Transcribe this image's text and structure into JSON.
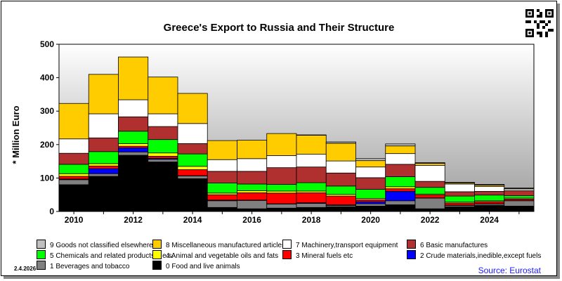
{
  "chart_data": {
    "type": "bar",
    "stacked": true,
    "title": "Greece's Export to Russia and Their Structure",
    "ylabel": "* Million Euro",
    "ylim": [
      0,
      500
    ],
    "yticks": [
      "0",
      "100",
      "200",
      "300",
      "400",
      "500"
    ],
    "categories": [
      "2010",
      "2011",
      "2012",
      "2013",
      "2014",
      "2015",
      "2016",
      "2017",
      "2018",
      "2019",
      "2020",
      "2021",
      "2022",
      "2023",
      "2024",
      "2025"
    ],
    "xtick_labels": [
      "2010",
      "2012",
      "2014",
      "2016",
      "2018",
      "2020",
      "2022",
      "2024"
    ],
    "series": [
      {
        "name": "0 Food and live animals",
        "color": "#000000",
        "values": [
          80,
          105,
          168,
          148,
          98,
          12,
          8,
          10,
          12,
          14,
          16,
          20,
          8,
          14,
          18,
          16
        ]
      },
      {
        "name": "1 Beverages and tobacco",
        "color": "#808080",
        "values": [
          15,
          8,
          10,
          8,
          8,
          20,
          25,
          12,
          12,
          4,
          7,
          12,
          32,
          4,
          4,
          16
        ]
      },
      {
        "name": "2 Crude materials,inedible,except fuels",
        "color": "#0000ff",
        "values": [
          2,
          15,
          12,
          3,
          1,
          2,
          1,
          1,
          2,
          2,
          6,
          28,
          1,
          1,
          1,
          1
        ]
      },
      {
        "name": "3 Mineral fuels etc",
        "color": "#ff0000",
        "values": [
          8,
          8,
          5,
          6,
          18,
          16,
          22,
          32,
          30,
          26,
          6,
          8,
          8,
          6,
          6,
          4
        ]
      },
      {
        "name": "4 Animal and vegetable oils and fats",
        "color": "#ffff00",
        "values": [
          8,
          7,
          8,
          10,
          10,
          5,
          6,
          6,
          5,
          5,
          4,
          6,
          3,
          3,
          3,
          3
        ]
      },
      {
        "name": "5 Chemicals and related products,n.e.s.",
        "color": "#00ff00",
        "values": [
          28,
          36,
          37,
          40,
          37,
          30,
          20,
          20,
          25,
          25,
          27,
          30,
          20,
          18,
          17,
          7
        ]
      },
      {
        "name": "6 Basic manufactures",
        "color": "#b03030",
        "values": [
          33,
          41,
          43,
          39,
          31,
          35,
          38,
          50,
          47,
          39,
          35,
          37,
          18,
          13,
          11,
          15
        ]
      },
      {
        "name": "7 Machinery,transport equipment",
        "color": "#ffffff",
        "values": [
          43,
          72,
          51,
          38,
          60,
          35,
          38,
          36,
          38,
          36,
          32,
          32,
          48,
          23,
          15,
          5
        ]
      },
      {
        "name": "8 Miscellaneous manufactured articles",
        "color": "#ffcc00",
        "values": [
          106,
          118,
          128,
          110,
          90,
          57,
          55,
          66,
          57,
          53,
          19,
          23,
          6,
          3,
          4,
          2
        ]
      },
      {
        "name": "9 Goods not classified elsewhere",
        "color": "#c0c0c0",
        "values": [
          0,
          0,
          0,
          0,
          0,
          0,
          0,
          0,
          1,
          4,
          6,
          6,
          2,
          2,
          2,
          1
        ]
      }
    ],
    "legend_order": [
      9,
      8,
      7,
      6,
      5,
      4,
      3,
      2,
      1,
      0
    ],
    "legend_placement": "bottom",
    "grid": false
  },
  "footer": {
    "date": "2.4.2026",
    "source": "Source: Eurostat"
  }
}
